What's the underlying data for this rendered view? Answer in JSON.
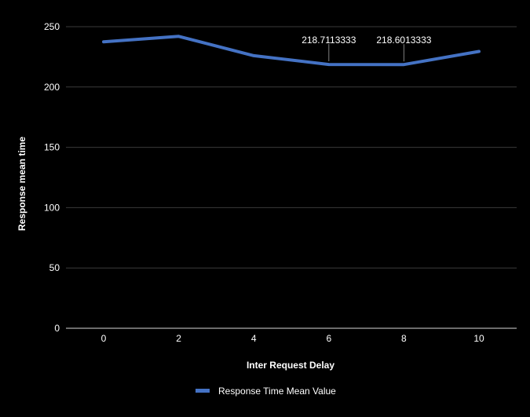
{
  "chart_data": {
    "type": "line",
    "title": "",
    "xlabel": "Inter Request Delay",
    "ylabel": "Response mean time",
    "x": [
      0,
      2,
      4,
      6,
      8,
      10
    ],
    "x_ticks": [
      "0",
      "2",
      "4",
      "6",
      "8",
      "10"
    ],
    "y_ticks": [
      "0",
      "50",
      "100",
      "150",
      "200",
      "250"
    ],
    "ylim": [
      0,
      250
    ],
    "grid": true,
    "legend": "bottom-center",
    "series": [
      {
        "name": "Response Time Mean Value",
        "color": "#4472C4",
        "values": [
          237.5,
          242,
          226,
          218.7113333,
          218.6013333,
          229.5
        ]
      }
    ],
    "annotations": [
      {
        "x": 6,
        "y": 218.7113333,
        "text": "218.7113333"
      },
      {
        "x": 8,
        "y": 218.6013333,
        "text": "218.6013333"
      }
    ],
    "colors": {
      "background": "#000000",
      "gridline": "#3a3a3a",
      "axis": "#d9d9d9",
      "text": "#ffffff"
    }
  }
}
